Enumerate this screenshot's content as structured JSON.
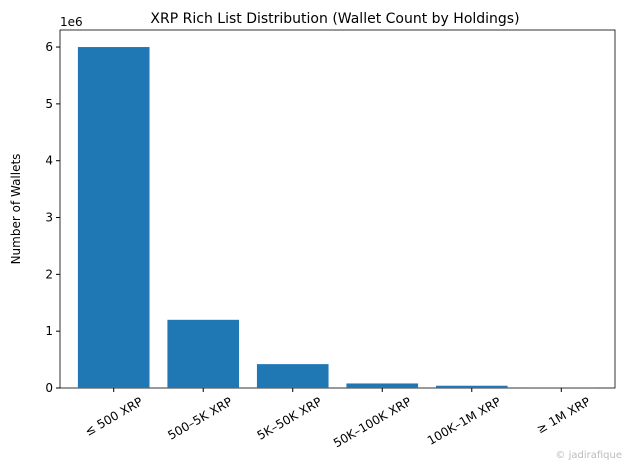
{
  "chart_data": {
    "type": "bar",
    "title": "XRP Rich List Distribution (Wallet Count by Holdings)",
    "y_label": "Number of Wallets",
    "offset_text": "1e6",
    "categories": [
      "≤ 500 XRP",
      "500–5K XRP",
      "5K–50K XRP",
      "50K–100K XRP",
      "100K–1M XRP",
      "≥ 1M XRP"
    ],
    "values": [
      6.0,
      1.2,
      0.42,
      0.08,
      0.04,
      0.002
    ],
    "color": "#1f77b4",
    "ylim": [
      0,
      6.3
    ],
    "yticks": [
      0,
      1,
      2,
      3,
      4,
      5,
      6
    ],
    "grid": false,
    "watermark": "© jadirafique"
  }
}
